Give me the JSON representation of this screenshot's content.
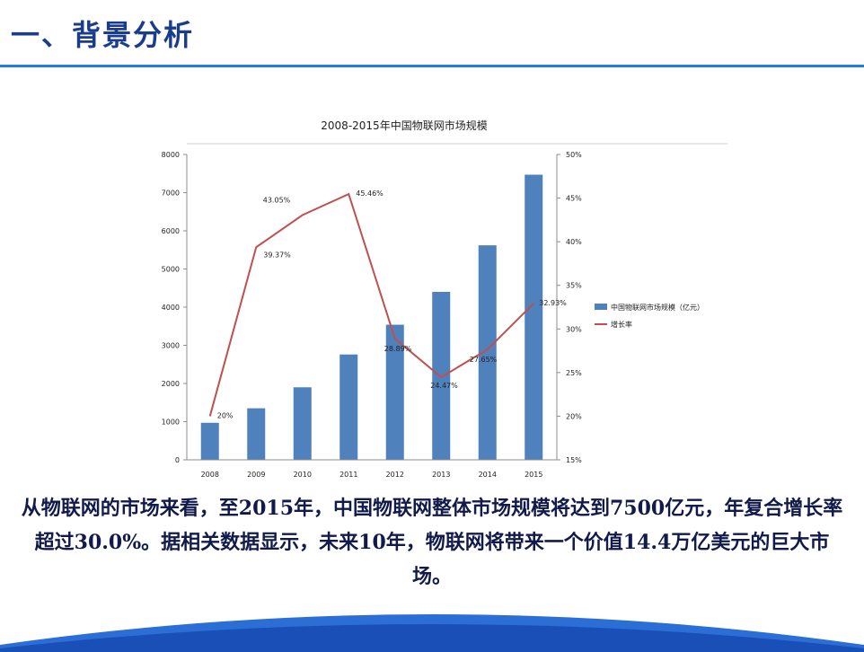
{
  "slide": {
    "title": "一、背景分析",
    "description": "从物联网的市场来看，至2015年，中国物联网整体市场规模将达到7500亿元，年复合增长率超过30.0%。据相关数据显示，未来10年，物联网将带来一个价值14.4万亿美元的巨大市场。"
  },
  "colors": {
    "accent": "#1e7ee0",
    "bar": "#4f81bd",
    "line": "#c0504d",
    "title": "#1a3c8c"
  },
  "chart_data": {
    "type": "bar",
    "title": "2008-2015年中国物联网市场规模",
    "categories": [
      "2008",
      "2009",
      "2010",
      "2011",
      "2012",
      "2013",
      "2014",
      "2015"
    ],
    "series": [
      {
        "name": "中国物联网市场规模（亿元）",
        "type": "bar",
        "axis": "left",
        "values": [
          970,
          1350,
          1900,
          2760,
          3540,
          4400,
          5620,
          7470
        ]
      },
      {
        "name": "增长率",
        "type": "line",
        "axis": "right",
        "values": [
          20,
          39.37,
          43.05,
          45.46,
          28.89,
          24.47,
          27.65,
          32.93
        ],
        "labels": [
          "20%",
          "39.37%",
          "43.05%",
          "45.46%",
          "28.89%",
          "24.47%",
          "27.65%",
          "32.93%"
        ]
      }
    ],
    "ylim": [
      0,
      8000
    ],
    "yticks": [
      "0",
      "1000",
      "2000",
      "3000",
      "4000",
      "5000",
      "6000",
      "7000",
      "8000"
    ],
    "y2lim": [
      15,
      50
    ],
    "y2ticks": [
      "15%",
      "20%",
      "25%",
      "30%",
      "35%",
      "40%",
      "45%",
      "50%"
    ],
    "grid": false,
    "legend_position": "right"
  }
}
